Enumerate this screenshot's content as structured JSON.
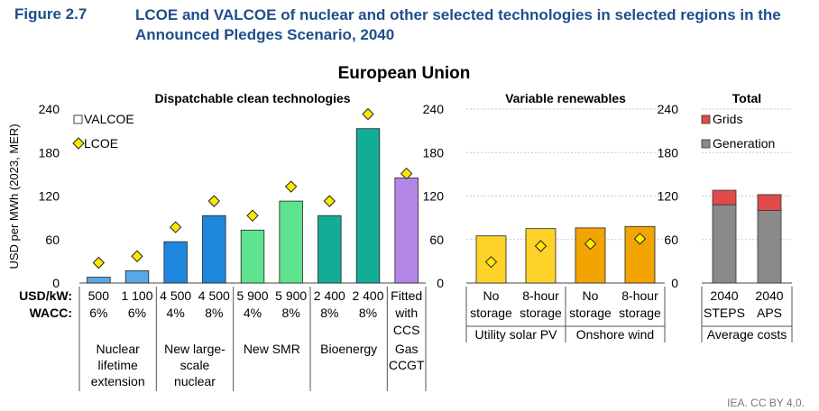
{
  "figure": {
    "number": "Figure 2.7",
    "title": "LCOE and VALCOE of nuclear and other selected technologies in selected regions in the Announced Pledges Scenario, 2040"
  },
  "credit": "IEA. CC BY 4.0.",
  "chart_data": {
    "type": "bar",
    "title": "European Union",
    "ylabel": "USD per MWh (2023, MER)",
    "ylim": [
      0,
      240
    ],
    "yticks": [
      0,
      60,
      120,
      180,
      240
    ],
    "row_labels": [
      "USD/kW:",
      "WACC:"
    ],
    "colors": {
      "nuclear_lifetime": "#5aa7e6",
      "nuclear_new": "#1f86de",
      "smr": "#5fe38f",
      "bioenergy": "#13ad96",
      "ccs": "#b386e6",
      "solar": "#ffd22a",
      "wind": "#f2a400",
      "generation": "#8a8a8a",
      "grids": "#e04a4a",
      "lcoe_marker": "#ffe800"
    },
    "panels": [
      {
        "title": "Dispatchable clean technologies",
        "legend": {
          "valcoe": "VALCOE",
          "lcoe": "LCOE"
        },
        "bars": [
          {
            "cost": "500",
            "wacc": "6%",
            "valcoe": 8,
            "lcoe": 28,
            "color": "nuclear_lifetime"
          },
          {
            "cost": "1 100",
            "wacc": "6%",
            "valcoe": 17,
            "lcoe": 37,
            "color": "nuclear_lifetime"
          },
          {
            "cost": "4 500",
            "wacc": "4%",
            "valcoe": 57,
            "lcoe": 77,
            "color": "nuclear_new"
          },
          {
            "cost": "4 500",
            "wacc": "8%",
            "valcoe": 93,
            "lcoe": 113,
            "color": "nuclear_new"
          },
          {
            "cost": "5 900",
            "wacc": "4%",
            "valcoe": 73,
            "lcoe": 93,
            "color": "smr"
          },
          {
            "cost": "5 900",
            "wacc": "8%",
            "valcoe": 113,
            "lcoe": 133,
            "color": "smr"
          },
          {
            "cost": "2 400",
            "wacc": "8%",
            "valcoe": 93,
            "lcoe": 113,
            "color": "bioenergy"
          },
          {
            "cost": "2 400",
            "wacc": "8%",
            "valcoe": 213,
            "lcoe": 233,
            "color": "bioenergy"
          },
          {
            "cost": "Fitted",
            "wacc": "with",
            "extra": "CCS",
            "valcoe": 145,
            "lcoe": 151,
            "color": "ccs"
          }
        ],
        "groups": [
          {
            "label": [
              "Nuclear",
              "lifetime",
              "extension"
            ],
            "bars": [
              0,
              1
            ]
          },
          {
            "label": [
              "New large-",
              "scale",
              "nuclear"
            ],
            "bars": [
              2,
              3
            ]
          },
          {
            "label": [
              "New SMR"
            ],
            "bars": [
              4,
              5
            ]
          },
          {
            "label": [
              "Bioenergy"
            ],
            "bars": [
              6,
              7
            ]
          },
          {
            "label": [
              "Gas",
              "CCGT"
            ],
            "bars": [
              8,
              8
            ]
          }
        ]
      },
      {
        "title": "Variable renewables",
        "bars": [
          {
            "cat": [
              "No",
              "storage"
            ],
            "valcoe": 65,
            "lcoe": 29,
            "color": "solar"
          },
          {
            "cat": [
              "8-hour",
              "storage"
            ],
            "valcoe": 75,
            "lcoe": 51,
            "color": "solar"
          },
          {
            "cat": [
              "No",
              "storage"
            ],
            "valcoe": 76,
            "lcoe": 54,
            "color": "wind"
          },
          {
            "cat": [
              "8-hour",
              "storage"
            ],
            "valcoe": 78,
            "lcoe": 61,
            "color": "wind"
          }
        ],
        "groups": [
          {
            "label": [
              "Utility solar PV"
            ],
            "bars": [
              0,
              1
            ]
          },
          {
            "label": [
              "Onshore wind"
            ],
            "bars": [
              2,
              3
            ]
          }
        ]
      },
      {
        "title": "Total",
        "legend": {
          "grids": "Grids",
          "generation": "Generation"
        },
        "bars": [
          {
            "cat": [
              "2040",
              "STEPS"
            ],
            "generation": 108,
            "grids": 20
          },
          {
            "cat": [
              "2040",
              "APS"
            ],
            "generation": 100,
            "grids": 22
          }
        ],
        "groups": [
          {
            "label": [
              "Average costs"
            ],
            "bars": [
              0,
              1
            ]
          }
        ]
      }
    ]
  }
}
